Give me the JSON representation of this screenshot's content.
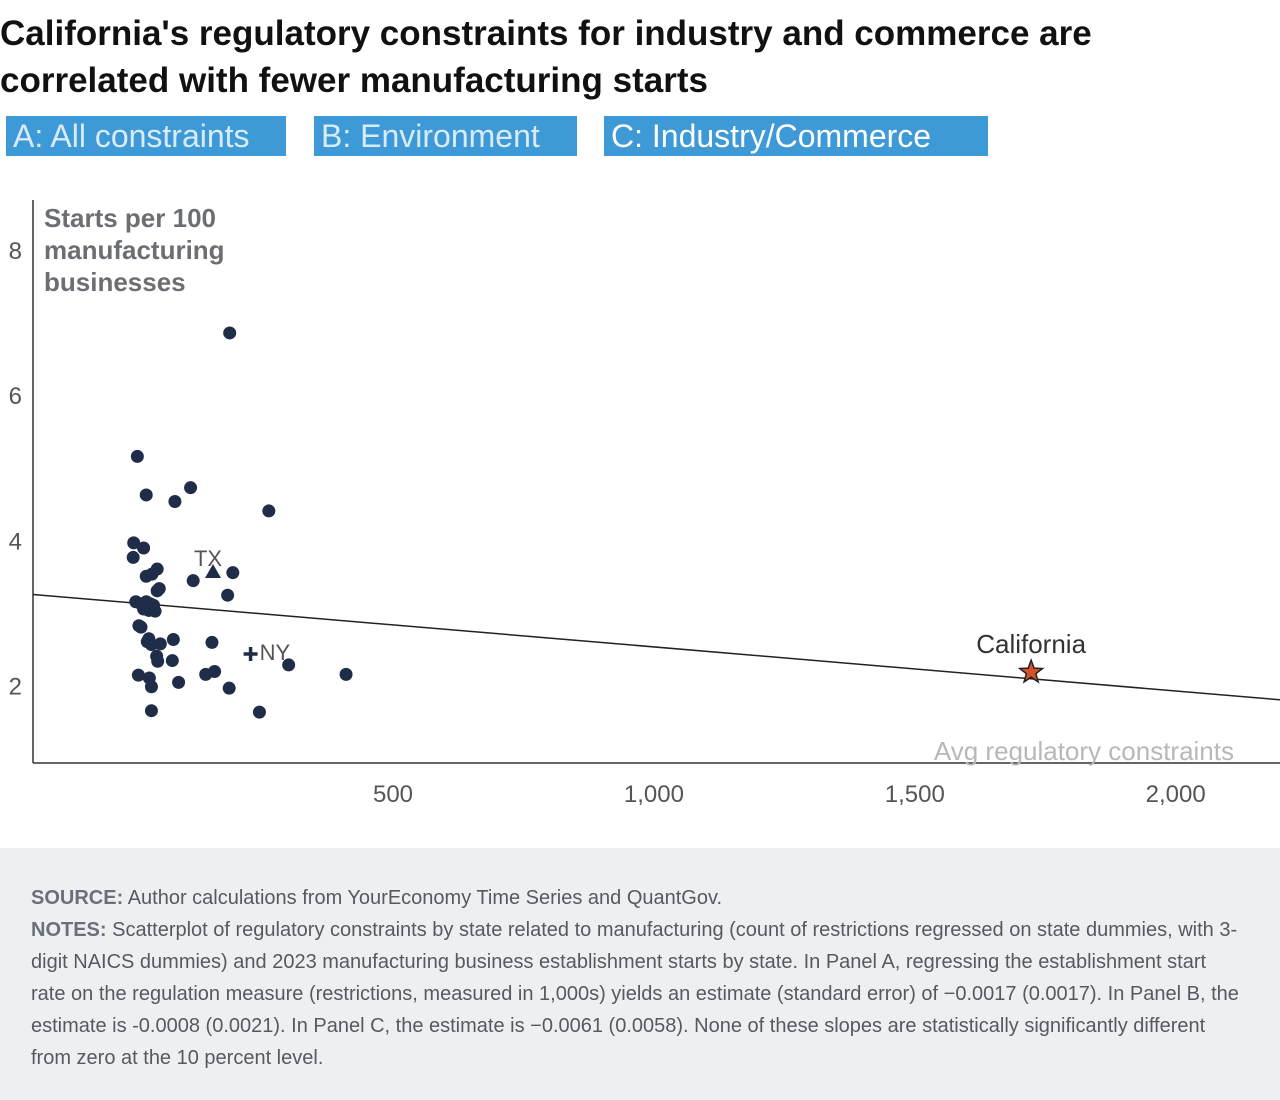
{
  "title": "California's regulatory constraints for industry and commerce are correlated with fewer manufacturing starts",
  "colors": {
    "tab_bg": "#3d9ad6",
    "point": "#1f2d48",
    "california_star": "#d4522a",
    "axis": "#333333",
    "footer_bg": "#eeeff1"
  },
  "tabs": [
    {
      "label": "A: All constraints",
      "active": false
    },
    {
      "label": "B: Environment",
      "active": false
    },
    {
      "label": "C: Industry/Commerce",
      "active": true
    }
  ],
  "chart_data": {
    "type": "scatter",
    "ylabel": "Starts per 100 manufacturing businesses",
    "xlabel": "Avg regulatory constraints",
    "xlim": [
      -190,
      2200
    ],
    "ylim": [
      0.95,
      8.7
    ],
    "x_ticks": [
      500,
      1000,
      1500,
      2000
    ],
    "x_tick_labels": [
      "500",
      "1,000",
      "1,500",
      "2,000"
    ],
    "y_ticks": [
      2,
      4,
      6,
      8
    ],
    "y_tick_labels": [
      "2",
      "4",
      "6",
      "8"
    ],
    "trendline": {
      "x": [
        -190,
        2200
      ],
      "y": [
        3.27,
        1.82
      ]
    },
    "points": [
      {
        "x": 187,
        "y": 6.87
      },
      {
        "x": 10,
        "y": 5.17
      },
      {
        "x": 27,
        "y": 4.64
      },
      {
        "x": 112,
        "y": 4.74
      },
      {
        "x": 82,
        "y": 4.55
      },
      {
        "x": 262,
        "y": 4.42
      },
      {
        "x": 3,
        "y": 3.98
      },
      {
        "x": 22,
        "y": 3.91
      },
      {
        "x": 2,
        "y": 3.78
      },
      {
        "x": 48,
        "y": 3.62
      },
      {
        "x": 38,
        "y": 3.55
      },
      {
        "x": 27,
        "y": 3.52
      },
      {
        "x": 193,
        "y": 3.57
      },
      {
        "x": 117,
        "y": 3.46
      },
      {
        "x": 52,
        "y": 3.35
      },
      {
        "x": 48,
        "y": 3.32
      },
      {
        "x": 183,
        "y": 3.26
      },
      {
        "x": 7,
        "y": 3.17
      },
      {
        "x": 17,
        "y": 3.14
      },
      {
        "x": 27,
        "y": 3.17
      },
      {
        "x": 35,
        "y": 3.14
      },
      {
        "x": 41,
        "y": 3.12
      },
      {
        "x": 22,
        "y": 3.07
      },
      {
        "x": 32,
        "y": 3.05
      },
      {
        "x": 44,
        "y": 3.04
      },
      {
        "x": 13,
        "y": 2.84
      },
      {
        "x": 17,
        "y": 2.82
      },
      {
        "x": 32,
        "y": 2.66
      },
      {
        "x": 29,
        "y": 2.62
      },
      {
        "x": 37,
        "y": 2.58
      },
      {
        "x": 54,
        "y": 2.59
      },
      {
        "x": 79,
        "y": 2.65
      },
      {
        "x": 153,
        "y": 2.61
      },
      {
        "x": 47,
        "y": 2.42
      },
      {
        "x": 49,
        "y": 2.35
      },
      {
        "x": 77,
        "y": 2.36
      },
      {
        "x": 300,
        "y": 2.3
      },
      {
        "x": 158,
        "y": 2.21
      },
      {
        "x": 141,
        "y": 2.17
      },
      {
        "x": 410,
        "y": 2.17
      },
      {
        "x": 12,
        "y": 2.16
      },
      {
        "x": 33,
        "y": 2.12
      },
      {
        "x": 89,
        "y": 2.06
      },
      {
        "x": 37,
        "y": 2.0
      },
      {
        "x": 186,
        "y": 1.98
      },
      {
        "x": 37,
        "y": 1.67
      },
      {
        "x": 244,
        "y": 1.65
      }
    ],
    "labeled_points": [
      {
        "label": "TX",
        "x": 155,
        "y": 3.58,
        "marker": "triangle"
      },
      {
        "label": "NY",
        "x": 227,
        "y": 2.45,
        "marker": "plus"
      },
      {
        "label": "California",
        "x": 1723,
        "y": 2.2,
        "marker": "star"
      }
    ]
  },
  "footer": {
    "source_label": "SOURCE:",
    "source_text": "Author calculations from YourEconomy Time Series and QuantGov.",
    "notes_label": "NOTES:",
    "notes_text": "Scatterplot of regulatory constraints by state related to manufacturing (count of restrictions regressed on state dummies, with 3-digit NAICS dummies) and 2023 manufacturing business establishment starts by state. In Panel A, regressing the establishment start rate on the regulation measure (restrictions, measured in 1,000s) yields an estimate (standard error) of −0.0017 (0.0017). In Panel B, the estimate is -0.0008 (0.0021). In Panel C, the estimate is −0.0061 (0.0058). None of these slopes are statistically significantly different from zero at the 10 percent level."
  }
}
